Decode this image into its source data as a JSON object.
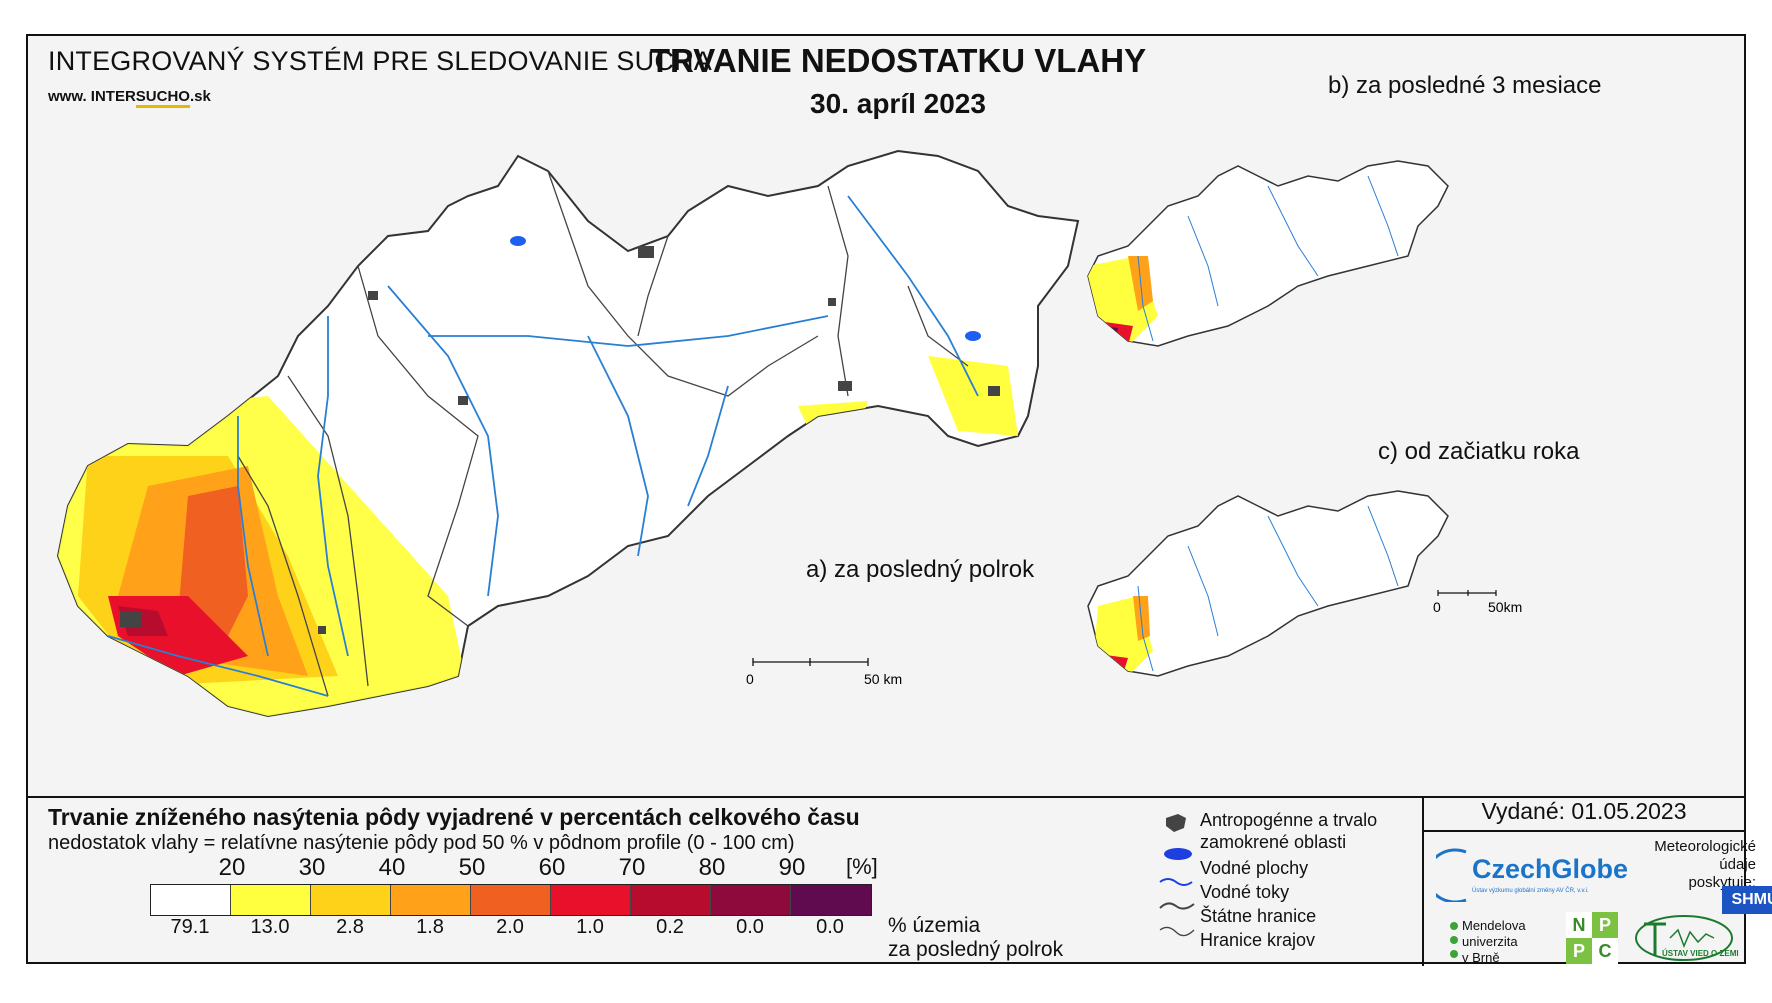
{
  "header": {
    "system_title": "INTEGROVANÝ SYSTÉM PRE SLEDOVANIE SUCHA",
    "website": {
      "prefix": "www. ",
      "intersucho_a": "INTER",
      "intersucho_b": "SUCHO",
      "suffix": ".sk"
    },
    "main_title": "TRVANIE NEDOSTATKU VLAHY",
    "date": "30. apríl 2023"
  },
  "maps": {
    "a_label": "a) za posledný polrok",
    "b_label": "b) za posledné 3 mesiace",
    "c_label": "c) od začiatku roka",
    "scale_main": {
      "start": "0",
      "end": "50 km"
    },
    "scale_small": {
      "start": "0",
      "end": "50km"
    }
  },
  "legend": {
    "title": "Trvanie zníženého nasýtenia pôdy vyjadrené v percentách celkového času",
    "subtitle": "nedostatok vlahy = relatívne nasýtenie pôdy pod 50 % v pôdnom profile (0 - 100 cm)",
    "class_breaks": [
      "20",
      "30",
      "40",
      "50",
      "60",
      "70",
      "80",
      "90"
    ],
    "unit": "[%]",
    "colors": [
      "#ffffff",
      "#ffff40",
      "#ffd21a",
      "#ffa21a",
      "#f06020",
      "#e8102a",
      "#b80c2e",
      "#8e0a3c",
      "#600a50"
    ],
    "area_percentages": [
      "79.1",
      "13.0",
      "2.8",
      "1.8",
      "2.0",
      "1.0",
      "0.2",
      "0.0",
      "0.0"
    ],
    "area_note_1": "% územia",
    "area_note_2": "za posledný polrok"
  },
  "symbols": {
    "anthropogenic_1": "Antropogénne a trvalo",
    "anthropogenic_2": "zamokrené oblasti",
    "water_bodies": "Vodné plochy",
    "streams": "Vodné toky",
    "state_borders": "Štátne hranice",
    "region_borders": "Hranice krajov"
  },
  "footer": {
    "issued": "Vydané: 01.05.2023",
    "czechglobe": "CzechGlobe",
    "czechglobe_sub": "Ústav výzkumu globální změny AV ČR, v.v.i.",
    "meteo_1": "Meteorologické",
    "meteo_2": "údaje",
    "meteo_3": "poskytuje:",
    "shmu": "SHMÚ",
    "mendel_1": "Mendelova",
    "mendel_2": "univerzita",
    "mendel_3": "v Brně",
    "nppc": [
      "N",
      "P",
      "P",
      "C"
    ],
    "uvz": "ÚSTAV VIED O ZEMI"
  }
}
